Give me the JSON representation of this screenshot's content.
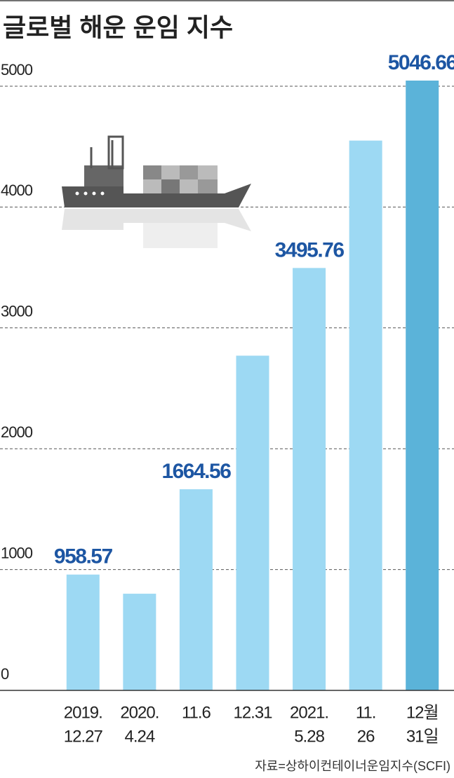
{
  "chart_data": {
    "type": "bar",
    "title": "글로벌 해운 운임 지수",
    "source": "자료=상하이컨테이너운임지수(SCFI)",
    "categories": [
      [
        "2019.",
        "12.27"
      ],
      [
        "2020.",
        "4.24"
      ],
      [
        "11.6"
      ],
      [
        "12.31"
      ],
      [
        "2021.",
        "5.28"
      ],
      [
        "11.",
        "26"
      ],
      [
        "12월",
        "31일"
      ]
    ],
    "values": [
      958.57,
      800,
      1664.56,
      2770,
      3495.76,
      4550,
      5046.66
    ],
    "value_labels": [
      "958.57",
      null,
      "1664.56",
      null,
      "3495.76",
      null,
      "5046.66"
    ],
    "colors": [
      "#9dd9f3",
      "#9dd9f3",
      "#9dd9f3",
      "#9dd9f3",
      "#9dd9f3",
      "#9dd9f3",
      "#5bb3d9"
    ],
    "ylim": [
      0,
      5000
    ],
    "yticks": [
      0,
      1000,
      2000,
      3000,
      4000,
      5000
    ],
    "grid": true
  }
}
